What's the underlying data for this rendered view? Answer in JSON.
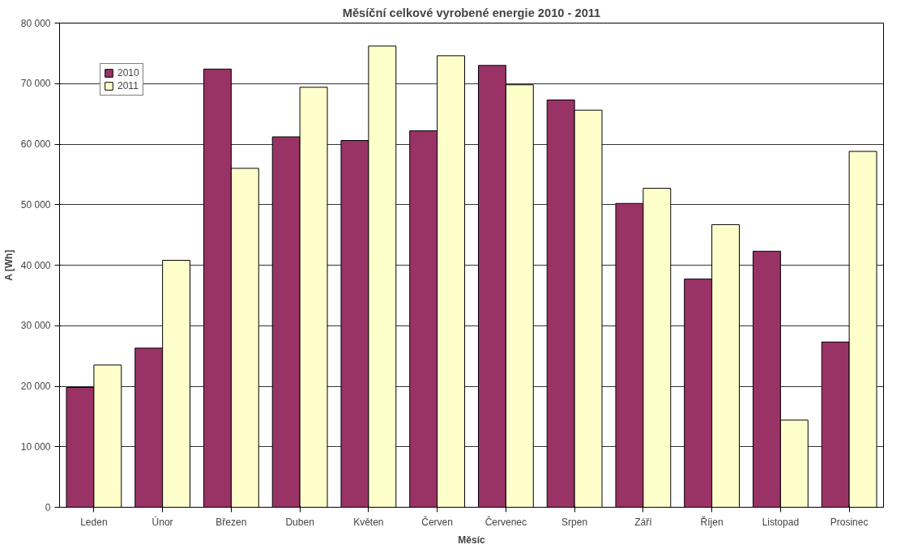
{
  "chart_data": {
    "type": "bar",
    "title": "Měsíční celkové vyrobené energie 2010 - 2011",
    "xlabel": "Měsíc",
    "ylabel": "A [Wh]",
    "categories": [
      "Leden",
      "Únor",
      "Březen",
      "Duben",
      "Květen",
      "Červen",
      "Červenec",
      "Srpen",
      "Září",
      "Říjen",
      "Listopad",
      "Prosinec"
    ],
    "series": [
      {
        "name": "2010",
        "color": "#993366",
        "values": [
          19800,
          26300,
          72400,
          61200,
          60600,
          62200,
          73000,
          67300,
          50200,
          37700,
          42300,
          27300
        ]
      },
      {
        "name": "2011",
        "color": "#ffffcc",
        "values": [
          23500,
          40800,
          56000,
          69400,
          76200,
          74600,
          69800,
          65600,
          52700,
          46700,
          14400,
          58800
        ]
      }
    ],
    "ylim": [
      0,
      80000
    ],
    "yticks": [
      {
        "value": 0,
        "label": "0"
      },
      {
        "value": 10000,
        "label": "10 000"
      },
      {
        "value": 20000,
        "label": "20 000"
      },
      {
        "value": 30000,
        "label": "30 000"
      },
      {
        "value": 40000,
        "label": "40 000"
      },
      {
        "value": 50000,
        "label": "50 000"
      },
      {
        "value": 60000,
        "label": "60 000"
      },
      {
        "value": 70000,
        "label": "70 000"
      },
      {
        "value": 80000,
        "label": "80 000"
      }
    ],
    "grid": "y",
    "legend": "top left"
  }
}
